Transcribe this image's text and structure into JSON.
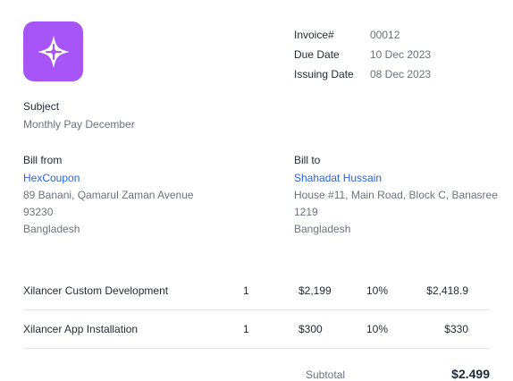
{
  "invoice": {
    "labels": {
      "number": "Invoice#",
      "due": "Due Date",
      "issuing": "Issuing Date"
    },
    "number": "00012",
    "due_date": "10 Dec 2023",
    "issuing_date": "08 Dec 2023"
  },
  "subject": {
    "label": "Subject",
    "value": "Monthly Pay December"
  },
  "bill_from": {
    "label": "Bill from",
    "name": "HexCoupon",
    "address1": "89 Banani, Qamarul Zaman Avenue",
    "address2": "93230",
    "country": "Bangladesh"
  },
  "bill_to": {
    "label": "Bill to",
    "name": "Shahadat Hussain",
    "address1": "House #11, Main Road, Block C, Banasree",
    "address2": "1219",
    "country": "Bangladesh"
  },
  "items": [
    {
      "name": "Xilancer Custom Development",
      "qty": "1",
      "price": "$2,199",
      "tax": "10%",
      "total": "$2,418.9"
    },
    {
      "name": "Xilancer App Installation",
      "qty": "1",
      "price": "$300",
      "tax": "10%",
      "total": "$330"
    }
  ],
  "subtotal": {
    "label": "Subtotal",
    "value": "$2.499"
  },
  "colors": {
    "logo": "#a855f7",
    "link": "#2563eb"
  },
  "icons": {
    "logo": "sparkle-logo-icon"
  }
}
